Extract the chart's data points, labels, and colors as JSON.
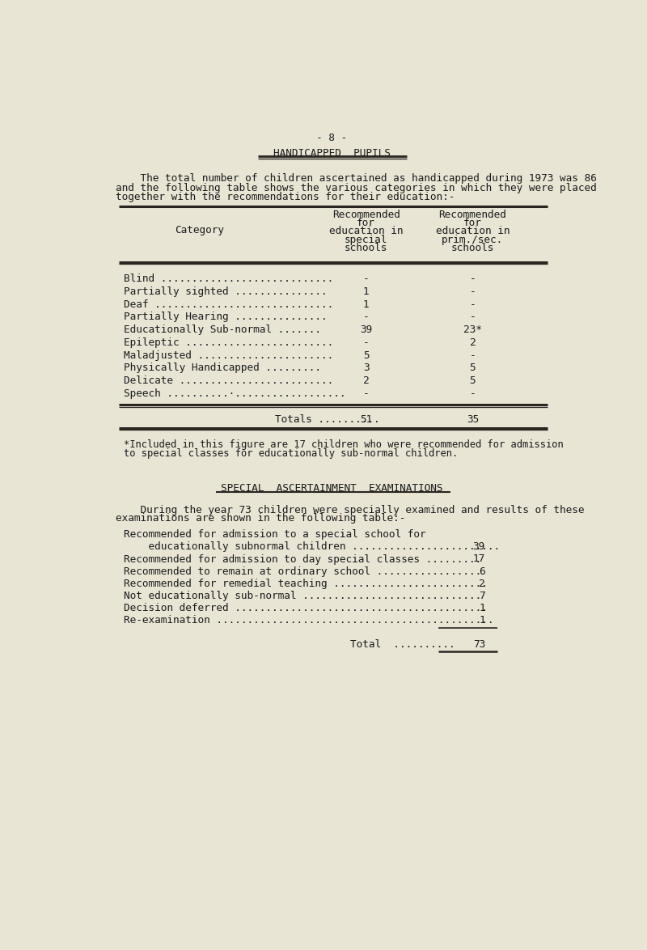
{
  "bg_color": "#e8e5d5",
  "text_color": "#1a1a1a",
  "page_number": "- 8 -",
  "main_title": "HANDICAPPED  PUPILS",
  "intro_text_line1": "    The total number of children ascertained as handicapped during 1973 was 86",
  "intro_text_line2": "and the following table shows the various categories in which they were placed",
  "intro_text_line3": "together with the recommendations for their education:-",
  "table_col1_header_lines": [
    "Recommended",
    "for",
    "education in",
    "special",
    "schools"
  ],
  "table_col2_header_lines": [
    "Recommended",
    "for",
    "education in",
    "prim./sec.",
    "schools"
  ],
  "table_cat_header": "Category",
  "table_rows": [
    [
      "Blind ............................",
      "-",
      "-"
    ],
    [
      "Partially sighted ...............",
      "1",
      "-"
    ],
    [
      "Deaf .............................",
      "1",
      "-"
    ],
    [
      "Partially Hearing ...............",
      "-",
      "-"
    ],
    [
      "Educationally Sub-normal .......",
      "39",
      "23*"
    ],
    [
      "Epileptic ........................",
      "-",
      "2"
    ],
    [
      "Maladjusted ......................",
      "5",
      "-"
    ],
    [
      "Physically Handicapped .........",
      "3",
      "5"
    ],
    [
      "Delicate .........................",
      "2",
      "5"
    ],
    [
      "Speech ..........·..................",
      "-",
      "-"
    ]
  ],
  "totals_label": "Totals ..........",
  "totals_col1": "51",
  "totals_col2": "35",
  "footnote_line1": "*Included in this figure are 17 children who were recommended for admission",
  "footnote_line2": "to special classes for educationally sub-normal children.",
  "section2_title": "SPECIAL  ASCERTAINMENT  EXAMINATIONS",
  "section2_intro_line1": "    During the year 73 children were specially examined and results of these",
  "section2_intro_line2": "examinations are shown in the following table:-",
  "section2_rows": [
    [
      "Recommended for admission to a special school for",
      ""
    ],
    [
      "    educationally subnormal children ........................",
      "39"
    ],
    [
      "Recommended for admission to day special classes .........",
      "17"
    ],
    [
      "Recommended to remain at ordinary school .................",
      "6"
    ],
    [
      "Recommended for remedial teaching .........................",
      "2"
    ],
    [
      "Not educationally sub-normal .............................",
      "7"
    ],
    [
      "Decision deferred .........................................",
      "1"
    ],
    [
      "Re-examination .............................................",
      "1"
    ]
  ],
  "total2_label": "Total  ..........",
  "total2_value": "73",
  "line_color": "#2a2520"
}
